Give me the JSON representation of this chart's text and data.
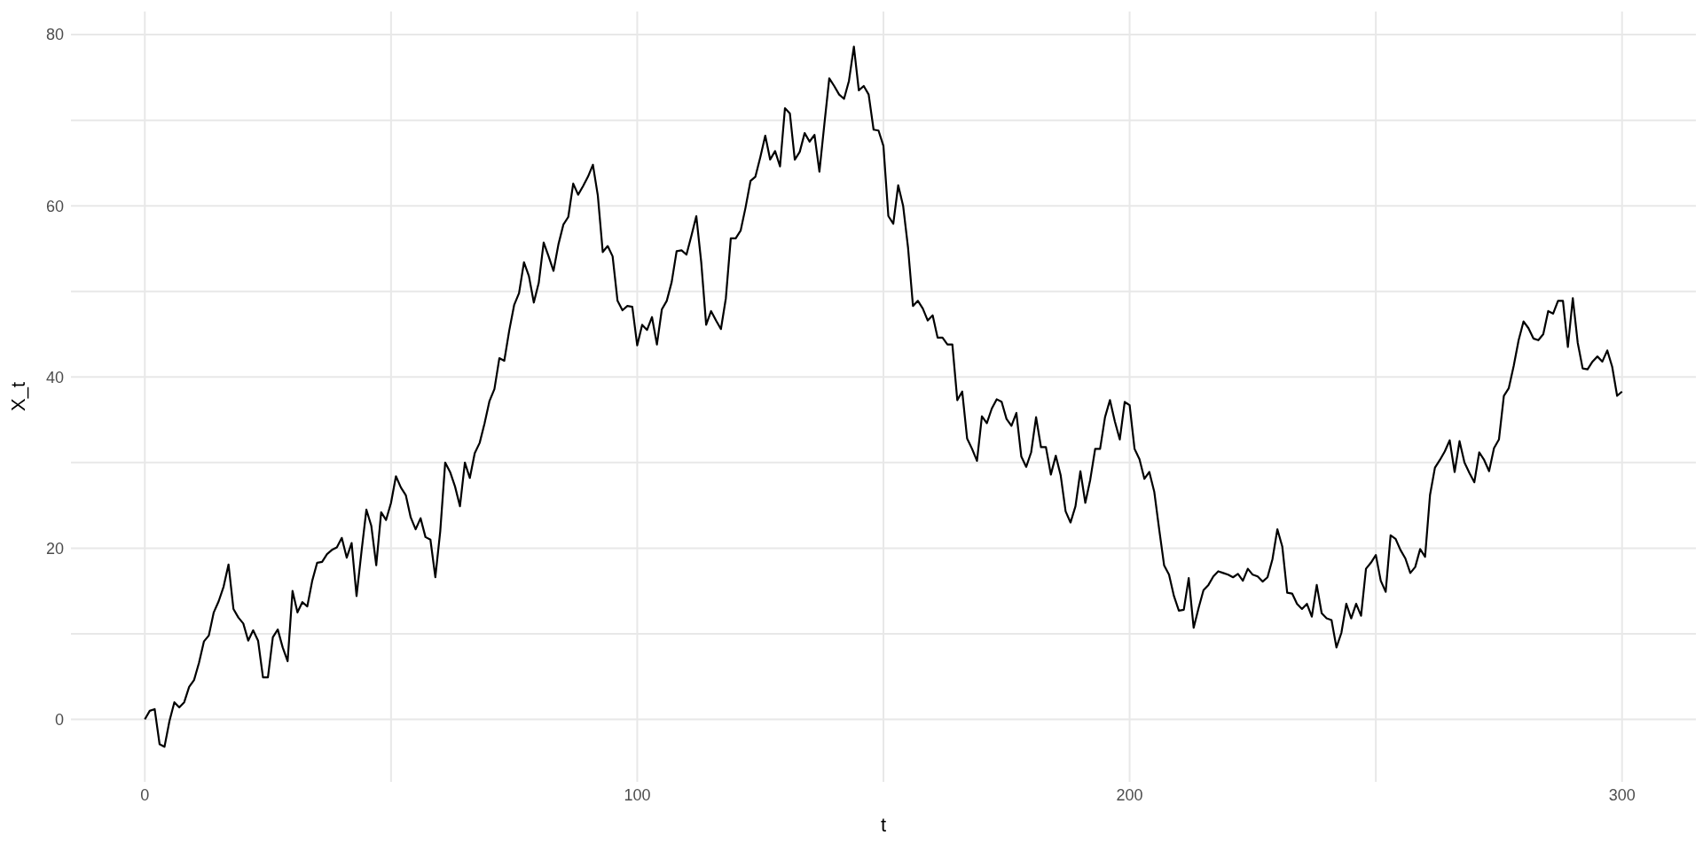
{
  "chart_data": {
    "type": "line",
    "xlabel": "t",
    "ylabel": "X_t",
    "grid": true,
    "marker": "none",
    "line_style": "solid",
    "xlim": [
      -15,
      315
    ],
    "xticks": [
      0,
      {
        "value": 50,
        "label": null
      },
      100,
      {
        "value": 150,
        "label": null
      },
      200,
      {
        "value": 250,
        "label": null
      },
      300
    ],
    "ylim": [
      -7.3,
      82.7
    ],
    "yticks": [
      0,
      {
        "value": 10,
        "label": null
      },
      20,
      {
        "value": 30,
        "label": null
      },
      40,
      {
        "value": 50,
        "label": null
      },
      60,
      {
        "value": 70,
        "label": null
      },
      80
    ],
    "series": [
      {
        "color": "#000000",
        "x": [
          0,
          1,
          2,
          3,
          4,
          5,
          6,
          7,
          8,
          9,
          10,
          11,
          12,
          13,
          14,
          15,
          16,
          17,
          18,
          19,
          20,
          21,
          22,
          23,
          24,
          25,
          26,
          27,
          28,
          29,
          30,
          31,
          32,
          33,
          34,
          35,
          36,
          37,
          38,
          39,
          40,
          41,
          42,
          43,
          44,
          45,
          46,
          47,
          48,
          49,
          50,
          51,
          52,
          53,
          54,
          55,
          56,
          57,
          58,
          59,
          60,
          61,
          62,
          63,
          64,
          65,
          66,
          67,
          68,
          69,
          70,
          71,
          72,
          73,
          74,
          75,
          76,
          77,
          78,
          79,
          80,
          81,
          82,
          83,
          84,
          85,
          86,
          87,
          88,
          89,
          90,
          91,
          92,
          93,
          94,
          95,
          96,
          97,
          98,
          99,
          100,
          101,
          102,
          103,
          104,
          105,
          106,
          107,
          108,
          109,
          110,
          111,
          112,
          113,
          114,
          115,
          116,
          117,
          118,
          119,
          120,
          121,
          122,
          123,
          124,
          125,
          126,
          127,
          128,
          129,
          130,
          131,
          132,
          133,
          134,
          135,
          136,
          137,
          138,
          139,
          140,
          141,
          142,
          143,
          144,
          145,
          146,
          147,
          148,
          149,
          150,
          151,
          152,
          153,
          154,
          155,
          156,
          157,
          158,
          159,
          160,
          161,
          162,
          163,
          164,
          165,
          166,
          167,
          168,
          169,
          170,
          171,
          172,
          173,
          174,
          175,
          176,
          177,
          178,
          179,
          180,
          181,
          182,
          183,
          184,
          185,
          186,
          187,
          188,
          189,
          190,
          191,
          192,
          193,
          194,
          195,
          196,
          197,
          198,
          199,
          200,
          201,
          202,
          203,
          204,
          205,
          206,
          207,
          208,
          209,
          210,
          211,
          212,
          213,
          214,
          215,
          216,
          217,
          218,
          219,
          220,
          221,
          222,
          223,
          224,
          225,
          226,
          227,
          228,
          229,
          230,
          231,
          232,
          233,
          234,
          235,
          236,
          237,
          238,
          239,
          240,
          241,
          242,
          243,
          244,
          245,
          246,
          247,
          248,
          249,
          250,
          251,
          252,
          253,
          254,
          255,
          256,
          257,
          258,
          259,
          260,
          261,
          262,
          263,
          264,
          265,
          266,
          267,
          268,
          269,
          270,
          271,
          272,
          273,
          274,
          275,
          276,
          277,
          278,
          279,
          280,
          281,
          282,
          283,
          284,
          285,
          286,
          287,
          288,
          289,
          290,
          291,
          292,
          293,
          294,
          295,
          296,
          297,
          298,
          299,
          300
        ],
        "values": [
          0,
          1.0,
          1.2,
          -2.9,
          -3.2,
          -0.2,
          2.0,
          1.4,
          2.0,
          3.8,
          4.6,
          6.6,
          9.1,
          9.8,
          12.5,
          13.8,
          15.5,
          18.1,
          12.9,
          11.9,
          11.2,
          9.2,
          10.4,
          9.2,
          4.9,
          4.9,
          9.6,
          10.5,
          8.4,
          6.8,
          15.0,
          12.5,
          13.7,
          13.2,
          16.2,
          18.3,
          18.4,
          19.3,
          19.8,
          20.1,
          21.2,
          18.9,
          20.6,
          14.4,
          19.6,
          24.5,
          22.6,
          18.0,
          24.2,
          23.3,
          25.3,
          28.4,
          27.1,
          26.2,
          23.6,
          22.2,
          23.5,
          21.3,
          21.0,
          16.6,
          22.0,
          30.0,
          28.9,
          27.2,
          24.9,
          30.0,
          28.2,
          31.1,
          32.3,
          34.6,
          37.2,
          38.6,
          42.2,
          41.9,
          45.4,
          48.4,
          49.8,
          53.4,
          51.8,
          48.7,
          51.0,
          55.7,
          54.1,
          52.4,
          55.5,
          57.8,
          58.7,
          62.6,
          61.3,
          62.3,
          63.4,
          64.8,
          61.2,
          54.6,
          55.3,
          54.1,
          48.9,
          47.8,
          48.3,
          48.2,
          43.7,
          46.1,
          45.5,
          47.0,
          43.8,
          47.9,
          48.9,
          51.1,
          54.7,
          54.8,
          54.3,
          56.5,
          58.8,
          53.4,
          46.1,
          47.7,
          46.6,
          45.6,
          49.2,
          56.2,
          56.2,
          57.1,
          59.8,
          62.9,
          63.4,
          65.7,
          68.2,
          65.4,
          66.4,
          64.6,
          71.4,
          70.8,
          65.4,
          66.3,
          68.5,
          67.5,
          68.3,
          64.0,
          69.5,
          74.9,
          74.0,
          73.0,
          72.5,
          74.6,
          78.6,
          73.5,
          74.0,
          73.0,
          68.9,
          68.8,
          67.0,
          58.8,
          57.9,
          62.4,
          60.0,
          55.1,
          48.3,
          48.9,
          48.0,
          46.6,
          47.2,
          44.6,
          44.6,
          43.8,
          43.8,
          37.3,
          38.3,
          32.8,
          31.6,
          30.2,
          35.4,
          34.6,
          36.3,
          37.4,
          37.1,
          35.1,
          34.3,
          35.8,
          30.7,
          29.5,
          31.2,
          35.3,
          31.8,
          31.8,
          28.6,
          30.8,
          28.5,
          24.3,
          23.0,
          24.9,
          29.0,
          25.3,
          28.0,
          31.6,
          31.6,
          35.3,
          37.3,
          34.8,
          32.7,
          37.1,
          36.7,
          31.6,
          30.4,
          28.1,
          28.9,
          26.6,
          22.2,
          18.0,
          16.9,
          14.4,
          12.7,
          12.8,
          16.5,
          10.7,
          13.0,
          15.1,
          15.7,
          16.7,
          17.3,
          17.1,
          16.9,
          16.6,
          17.0,
          16.2,
          17.6,
          16.9,
          16.7,
          16.1,
          16.6,
          18.7,
          22.2,
          20.2,
          14.8,
          14.7,
          13.5,
          12.9,
          13.5,
          12.0,
          15.7,
          12.4,
          11.8,
          11.6,
          8.4,
          10.1,
          13.5,
          11.8,
          13.5,
          12.1,
          17.6,
          18.3,
          19.2,
          16.2,
          14.9,
          21.5,
          21.1,
          19.8,
          18.8,
          17.1,
          17.8,
          19.9,
          19.0,
          26.2,
          29.4,
          30.3,
          31.3,
          32.6,
          28.9,
          32.5,
          30.0,
          28.8,
          27.7,
          31.2,
          30.3,
          29.0,
          31.7,
          32.7,
          37.8,
          38.7,
          41.3,
          44.3,
          46.5,
          45.7,
          44.5,
          44.3,
          45.0,
          47.7,
          47.4,
          48.9,
          48.9,
          43.5,
          49.2,
          44.0,
          41.0,
          40.9,
          41.8,
          42.4,
          41.8,
          43.1,
          41.2,
          37.8,
          38.3
        ]
      }
    ]
  }
}
